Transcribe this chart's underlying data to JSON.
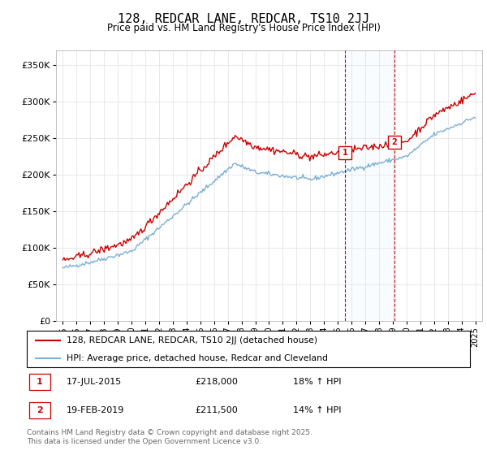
{
  "title": "128, REDCAR LANE, REDCAR, TS10 2JJ",
  "subtitle": "Price paid vs. HM Land Registry's House Price Index (HPI)",
  "background_color": "#ffffff",
  "plot_bg_color": "#ffffff",
  "grid_color": "#e0e0e0",
  "red_color": "#cc0000",
  "blue_color": "#7bafd4",
  "vline_color": "#cc0000",
  "vshade_color": "#ddeeff",
  "marker1_x": 2015.54,
  "marker2_x": 2019.12,
  "marker1_date": "17-JUL-2015",
  "marker1_price": "£218,000",
  "marker1_hpi": "18% ↑ HPI",
  "marker2_date": "19-FEB-2019",
  "marker2_price": "£211,500",
  "marker2_hpi": "14% ↑ HPI",
  "legend_line1": "128, REDCAR LANE, REDCAR, TS10 2JJ (detached house)",
  "legend_line2": "HPI: Average price, detached house, Redcar and Cleveland",
  "footer": "Contains HM Land Registry data © Crown copyright and database right 2025.\nThis data is licensed under the Open Government Licence v3.0.",
  "ylim": [
    0,
    370000
  ],
  "xlim": [
    1994.5,
    2025.5
  ]
}
